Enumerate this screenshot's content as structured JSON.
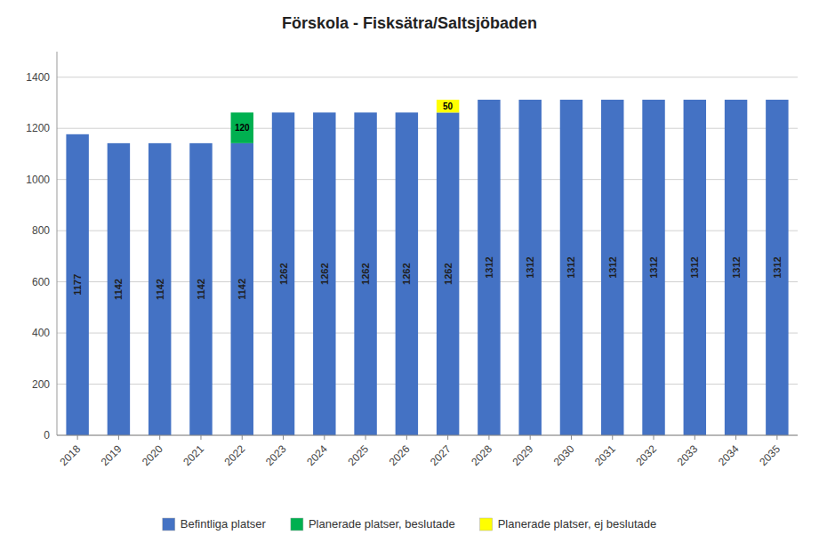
{
  "chart_data": {
    "type": "bar",
    "stacked": true,
    "title": "Förskola - Fisksätra/Saltsjöbaden",
    "categories": [
      "2018",
      "2019",
      "2020",
      "2021",
      "2022",
      "2023",
      "2024",
      "2025",
      "2026",
      "2027",
      "2028",
      "2029",
      "2030",
      "2031",
      "2032",
      "2033",
      "2034",
      "2035"
    ],
    "series": [
      {
        "name": "Befintliga platser",
        "color": "#4472C4",
        "values": [
          1177,
          1142,
          1142,
          1142,
          1142,
          1262,
          1262,
          1262,
          1262,
          1262,
          1312,
          1312,
          1312,
          1312,
          1312,
          1312,
          1312,
          1312
        ]
      },
      {
        "name": "Planerade platser, beslutade",
        "color": "#00B050",
        "values": [
          0,
          0,
          0,
          0,
          120,
          0,
          0,
          0,
          0,
          0,
          0,
          0,
          0,
          0,
          0,
          0,
          0,
          0
        ]
      },
      {
        "name": "Planerade platser, ej beslutade",
        "color": "#FFFF00",
        "values": [
          0,
          0,
          0,
          0,
          0,
          0,
          0,
          0,
          0,
          50,
          0,
          0,
          0,
          0,
          0,
          0,
          0,
          0
        ]
      }
    ],
    "ylim": [
      0,
      1500
    ],
    "yticks": [
      0,
      200,
      400,
      600,
      800,
      1000,
      1200,
      1400
    ],
    "grid": true,
    "legend": "bottom",
    "data_labels": true
  }
}
